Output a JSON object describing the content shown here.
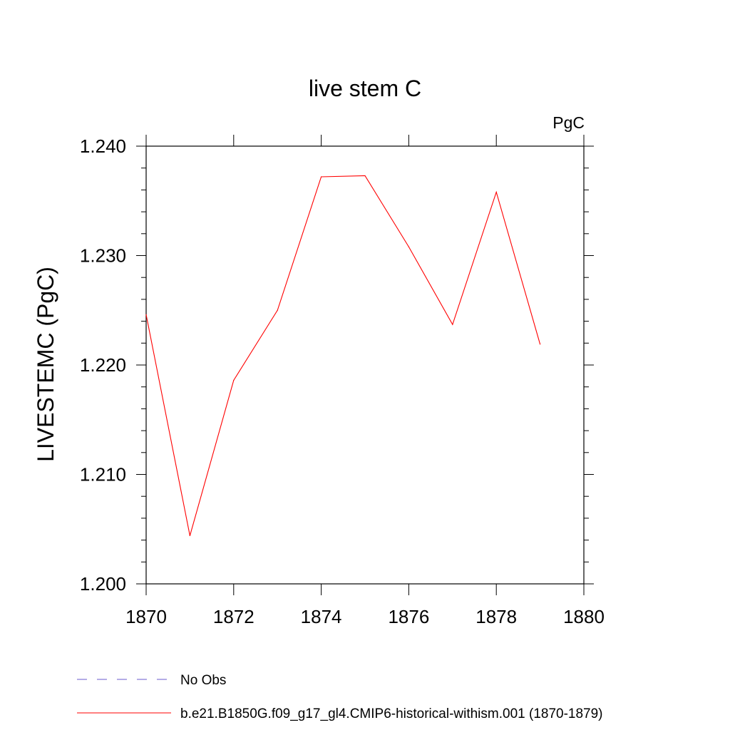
{
  "chart_data": {
    "type": "line",
    "title": "live stem C",
    "units_label": "PgC",
    "ylabel": "LIVESTEMC  (PgC)",
    "xlabel": "",
    "xlim": [
      1870,
      1880
    ],
    "ylim": [
      1.2,
      1.24
    ],
    "x_ticks": [
      1870,
      1872,
      1874,
      1876,
      1878,
      1880
    ],
    "x_tick_labels": [
      "1870",
      "1872",
      "1874",
      "1876",
      "1878",
      "1880"
    ],
    "y_ticks": [
      1.2,
      1.21,
      1.22,
      1.23,
      1.24
    ],
    "y_tick_labels": [
      "1.200",
      "1.210",
      "1.220",
      "1.230",
      "1.240"
    ],
    "grid": false,
    "legend_position": "bottom",
    "series": [
      {
        "name": "b.e21.B1850G.f09_g17_gl4.CMIP6-historical-withism.001 (1870-1879)",
        "color": "#ff0000",
        "style": "solid",
        "x": [
          1870,
          1871,
          1872,
          1873,
          1874,
          1875,
          1876,
          1877,
          1878,
          1879
        ],
        "y": [
          1.2246,
          1.2044,
          1.2186,
          1.225,
          1.2372,
          1.2373,
          1.2308,
          1.2237,
          1.2358,
          1.2219
        ]
      }
    ],
    "legend": [
      {
        "label": "No Obs",
        "color": "#6a5acd",
        "style": "dashed"
      },
      {
        "label": "b.e21.B1850G.f09_g17_gl4.CMIP6-historical-withism.001 (1870-1879)",
        "color": "#ff0000",
        "style": "solid"
      }
    ]
  }
}
